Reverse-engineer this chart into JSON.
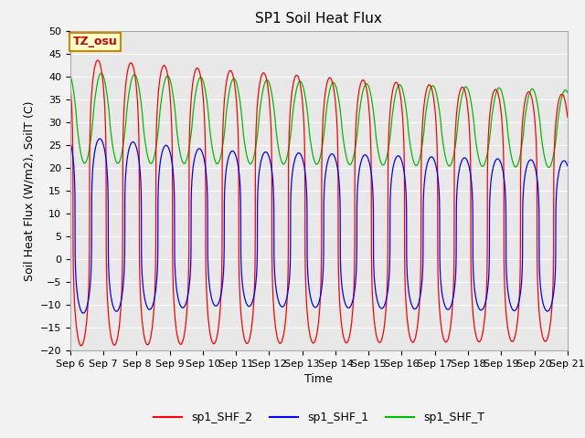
{
  "title": "SP1 Soil Heat Flux",
  "xlabel": "Time",
  "ylabel": "Soil Heat Flux (W/m2), SoilT (C)",
  "ylim": [
    -20,
    50
  ],
  "x_tick_labels": [
    "Sep 6",
    "Sep 7",
    "Sep 8",
    "Sep 9",
    "Sep 10",
    "Sep 11",
    "Sep 12",
    "Sep 13",
    "Sep 14",
    "Sep 15",
    "Sep 16",
    "Sep 17",
    "Sep 18",
    "Sep 19",
    "Sep 20",
    "Sep 21"
  ],
  "legend_labels": [
    "sp1_SHF_2",
    "sp1_SHF_1",
    "sp1_SHF_T"
  ],
  "legend_colors": [
    "#ff0000",
    "#0000ff",
    "#00bb00"
  ],
  "annotation_text": "TZ_osu",
  "annotation_box_color": "#ffffcc",
  "annotation_box_edge": "#cc8800",
  "plot_bg_color": "#e8e8e8",
  "fig_bg_color": "#f2f2f2",
  "grid_color": "#ffffff",
  "title_fontsize": 11,
  "label_fontsize": 9,
  "tick_fontsize": 8,
  "num_days": 15,
  "period_hours": 24,
  "sharpness": 3.5
}
